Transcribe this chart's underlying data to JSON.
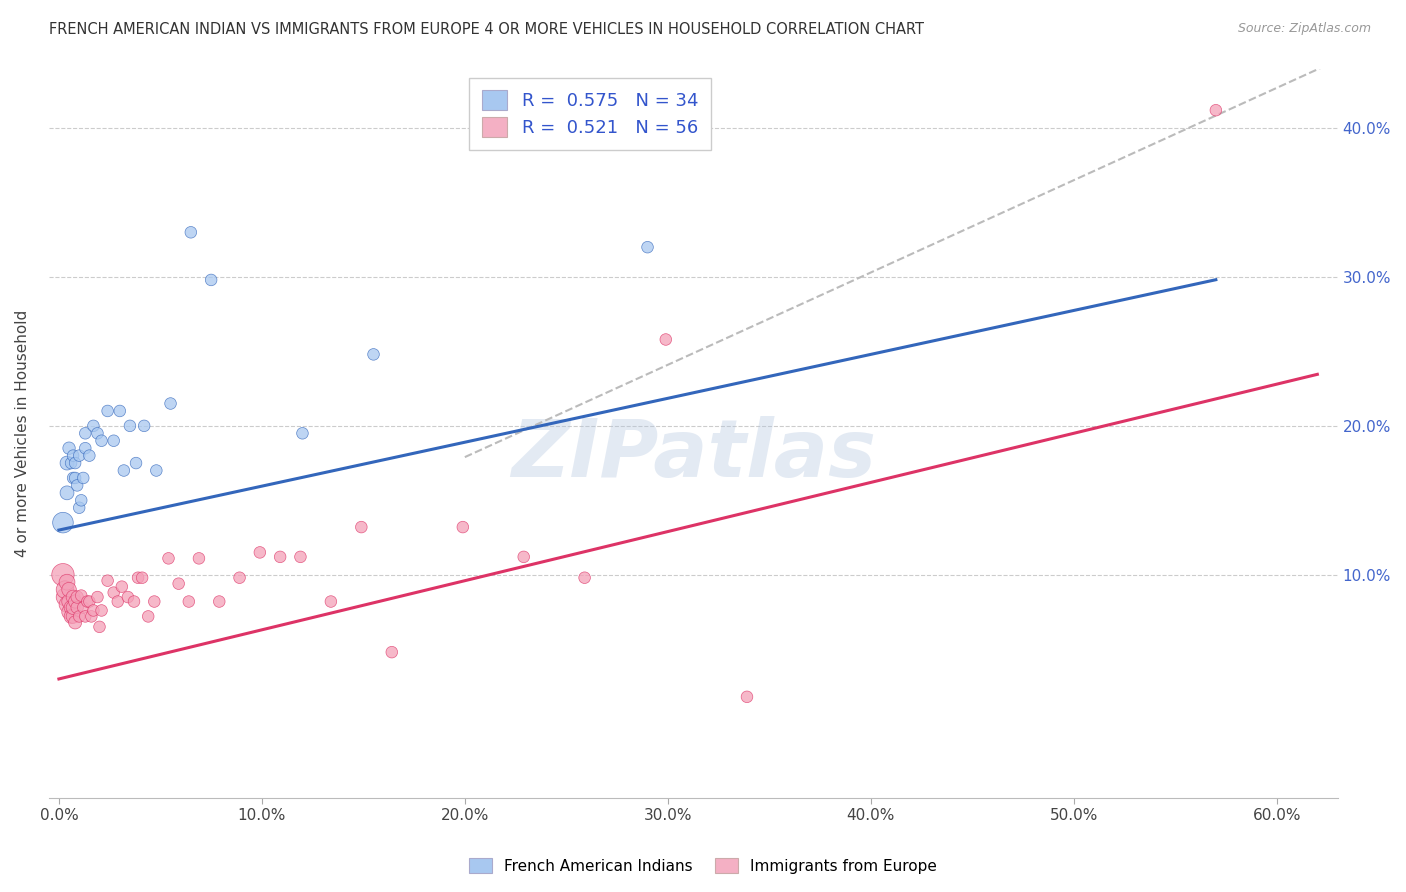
{
  "title": "FRENCH AMERICAN INDIAN VS IMMIGRANTS FROM EUROPE 4 OR MORE VEHICLES IN HOUSEHOLD CORRELATION CHART",
  "source": "Source: ZipAtlas.com",
  "ylabel": "4 or more Vehicles in Household",
  "xlabel_ticks": [
    "0.0%",
    "10.0%",
    "20.0%",
    "30.0%",
    "40.0%",
    "50.0%",
    "60.0%"
  ],
  "xlabel_vals": [
    0.0,
    0.1,
    0.2,
    0.3,
    0.4,
    0.5,
    0.6
  ],
  "ylabel_ticks": [
    "10.0%",
    "20.0%",
    "30.0%",
    "40.0%"
  ],
  "ylabel_vals": [
    0.1,
    0.2,
    0.3,
    0.4
  ],
  "xlim": [
    -0.005,
    0.63
  ],
  "ylim": [
    -0.05,
    0.44
  ],
  "blue_R": 0.575,
  "blue_N": 34,
  "pink_R": 0.521,
  "pink_N": 56,
  "watermark": "ZIPatlas",
  "blue_color": "#a8c8f0",
  "pink_color": "#f4a0b8",
  "blue_line_color": "#3366bb",
  "pink_line_color": "#dd3366",
  "dashed_line_color": "#bbbbbb",
  "legend_blue_patch": "#a8c8f0",
  "legend_pink_patch": "#f4b0c4",
  "blue_scatter": {
    "x": [
      0.002,
      0.004,
      0.004,
      0.005,
      0.006,
      0.007,
      0.007,
      0.008,
      0.008,
      0.009,
      0.01,
      0.01,
      0.011,
      0.012,
      0.013,
      0.013,
      0.015,
      0.017,
      0.019,
      0.021,
      0.024,
      0.027,
      0.03,
      0.032,
      0.035,
      0.038,
      0.042,
      0.048,
      0.055,
      0.065,
      0.075,
      0.12,
      0.155,
      0.29
    ],
    "y": [
      0.135,
      0.175,
      0.155,
      0.185,
      0.175,
      0.18,
      0.165,
      0.175,
      0.165,
      0.16,
      0.145,
      0.18,
      0.15,
      0.165,
      0.185,
      0.195,
      0.18,
      0.2,
      0.195,
      0.19,
      0.21,
      0.19,
      0.21,
      0.17,
      0.2,
      0.175,
      0.2,
      0.17,
      0.215,
      0.33,
      0.298,
      0.195,
      0.248,
      0.32
    ],
    "sizes": [
      220,
      100,
      100,
      80,
      70,
      70,
      70,
      70,
      70,
      70,
      70,
      70,
      70,
      70,
      70,
      70,
      70,
      70,
      70,
      70,
      70,
      70,
      70,
      70,
      70,
      70,
      70,
      70,
      70,
      70,
      70,
      70,
      70,
      70
    ]
  },
  "pink_scatter": {
    "x": [
      0.002,
      0.003,
      0.003,
      0.004,
      0.004,
      0.005,
      0.005,
      0.005,
      0.006,
      0.006,
      0.007,
      0.007,
      0.007,
      0.008,
      0.008,
      0.009,
      0.009,
      0.01,
      0.011,
      0.012,
      0.013,
      0.014,
      0.015,
      0.016,
      0.017,
      0.019,
      0.02,
      0.021,
      0.024,
      0.027,
      0.029,
      0.031,
      0.034,
      0.037,
      0.039,
      0.041,
      0.044,
      0.047,
      0.054,
      0.059,
      0.064,
      0.069,
      0.079,
      0.089,
      0.099,
      0.109,
      0.119,
      0.134,
      0.149,
      0.164,
      0.199,
      0.229,
      0.259,
      0.299,
      0.339,
      0.57
    ],
    "y": [
      0.1,
      0.085,
      0.09,
      0.095,
      0.08,
      0.075,
      0.082,
      0.09,
      0.078,
      0.072,
      0.085,
      0.072,
      0.078,
      0.082,
      0.068,
      0.078,
      0.085,
      0.072,
      0.086,
      0.078,
      0.072,
      0.082,
      0.082,
      0.072,
      0.076,
      0.085,
      0.065,
      0.076,
      0.096,
      0.088,
      0.082,
      0.092,
      0.085,
      0.082,
      0.098,
      0.098,
      0.072,
      0.082,
      0.111,
      0.094,
      0.082,
      0.111,
      0.082,
      0.098,
      0.115,
      0.112,
      0.112,
      0.082,
      0.132,
      0.048,
      0.132,
      0.112,
      0.098,
      0.258,
      0.018,
      0.412
    ],
    "sizes": [
      260,
      160,
      160,
      130,
      130,
      110,
      110,
      110,
      100,
      100,
      100,
      100,
      100,
      90,
      90,
      80,
      80,
      70,
      70,
      70,
      70,
      70,
      70,
      70,
      70,
      70,
      70,
      70,
      70,
      70,
      70,
      70,
      70,
      70,
      70,
      70,
      70,
      70,
      70,
      70,
      70,
      70,
      70,
      70,
      70,
      70,
      70,
      70,
      70,
      70,
      70,
      70,
      70,
      70,
      70,
      70
    ]
  },
  "blue_line": {
    "x0": 0.0,
    "x1": 0.57,
    "slope": 0.295,
    "intercept": 0.13
  },
  "pink_line": {
    "x0": 0.0,
    "x1": 0.62,
    "slope": 0.33,
    "intercept": 0.03
  },
  "dashed_line": {
    "x0": 0.2,
    "x1": 0.63,
    "slope": 0.62,
    "intercept": 0.055
  }
}
